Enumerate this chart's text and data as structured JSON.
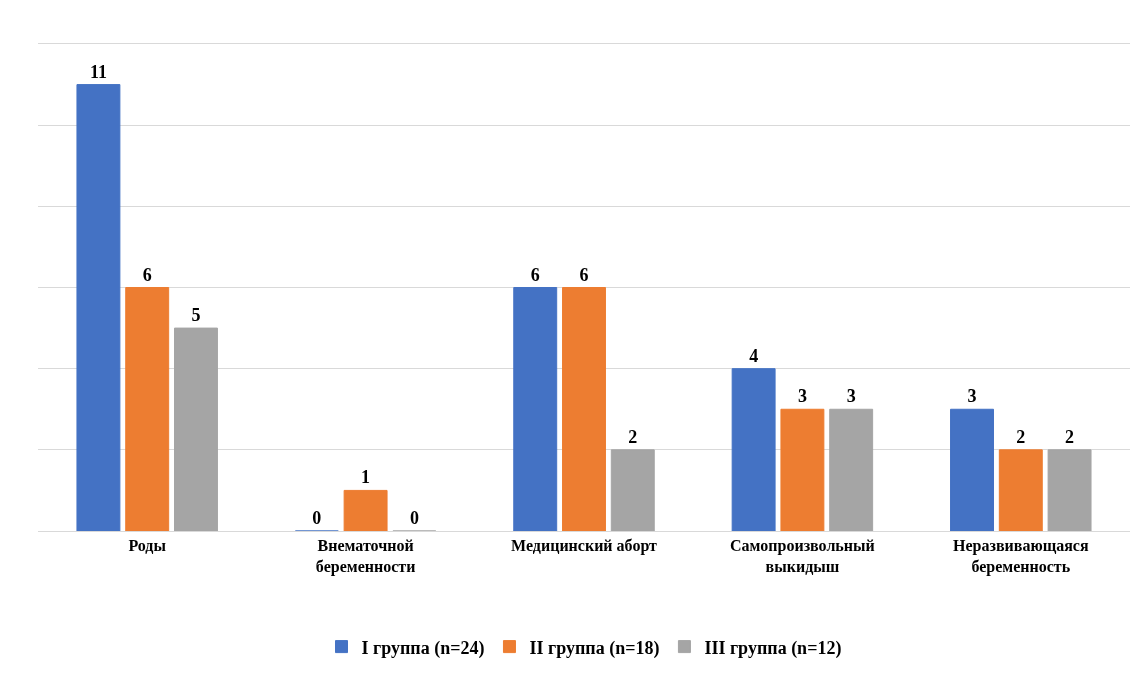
{
  "chart_data": {
    "type": "bar",
    "categories": [
      "Роды",
      "Внематочной\nбеременности",
      "Медицинский аборт",
      "Самопроизвольный\nвыкидыш",
      "Неразвивающаяся\nбеременность"
    ],
    "series": [
      {
        "name": "I группа (n=24)",
        "color": "#4472c4",
        "values": [
          11,
          0,
          6,
          4,
          3
        ]
      },
      {
        "name": "II группа (n=18)",
        "color": "#ed7d31",
        "values": [
          6,
          1,
          6,
          3,
          2
        ]
      },
      {
        "name": "III группа (n=12)",
        "color": "#a5a5a5",
        "values": [
          5,
          0,
          2,
          3,
          2
        ]
      }
    ],
    "ylim": [
      0,
      12
    ],
    "yticks": [
      {
        "value": 0,
        "label": null
      },
      {
        "value": 2,
        "label": null
      },
      {
        "value": 4,
        "label": null
      },
      {
        "value": 6,
        "label": null
      },
      {
        "value": 8,
        "label": null
      },
      {
        "value": 10,
        "label": null
      },
      {
        "value": 12,
        "label": null
      }
    ],
    "grid": "y",
    "tick_labels": "x",
    "data_labels": true,
    "legend": "bottom"
  }
}
